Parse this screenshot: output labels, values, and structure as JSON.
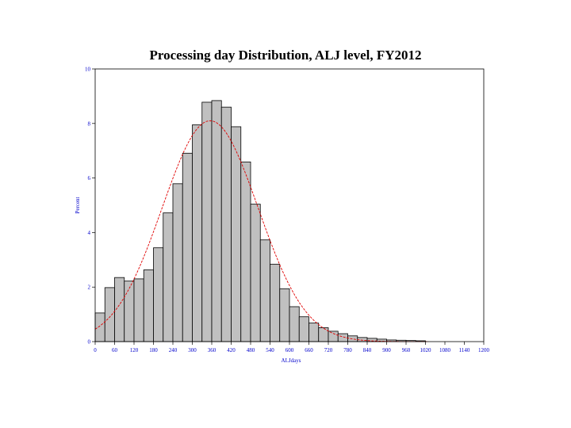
{
  "chart_data": {
    "type": "bar",
    "title": "Processing day Distribution, ALJ level, FY2012",
    "xlabel": "ALJdays",
    "ylabel": "Percent",
    "xlim": [
      0,
      1200
    ],
    "ylim": [
      0,
      10
    ],
    "bin_width": 30,
    "x_ticks": [
      0,
      60,
      120,
      180,
      240,
      300,
      360,
      420,
      480,
      540,
      600,
      660,
      720,
      780,
      840,
      900,
      960,
      1020,
      1080,
      1140,
      1200
    ],
    "y_ticks": [
      0,
      2,
      4,
      6,
      8,
      10
    ],
    "bins": [
      {
        "x": 15,
        "value": 1.05
      },
      {
        "x": 45,
        "value": 1.98
      },
      {
        "x": 75,
        "value": 2.35
      },
      {
        "x": 105,
        "value": 2.22
      },
      {
        "x": 135,
        "value": 2.3
      },
      {
        "x": 165,
        "value": 2.63
      },
      {
        "x": 195,
        "value": 3.44
      },
      {
        "x": 225,
        "value": 4.72
      },
      {
        "x": 255,
        "value": 5.79
      },
      {
        "x": 285,
        "value": 6.91
      },
      {
        "x": 315,
        "value": 7.95
      },
      {
        "x": 345,
        "value": 8.78
      },
      {
        "x": 375,
        "value": 8.84
      },
      {
        "x": 405,
        "value": 8.6
      },
      {
        "x": 435,
        "value": 7.88
      },
      {
        "x": 465,
        "value": 6.59
      },
      {
        "x": 495,
        "value": 5.04
      },
      {
        "x": 525,
        "value": 3.73
      },
      {
        "x": 555,
        "value": 2.84
      },
      {
        "x": 585,
        "value": 1.94
      },
      {
        "x": 615,
        "value": 1.28
      },
      {
        "x": 645,
        "value": 0.91
      },
      {
        "x": 675,
        "value": 0.68
      },
      {
        "x": 705,
        "value": 0.51
      },
      {
        "x": 735,
        "value": 0.38
      },
      {
        "x": 765,
        "value": 0.29
      },
      {
        "x": 795,
        "value": 0.21
      },
      {
        "x": 825,
        "value": 0.15
      },
      {
        "x": 855,
        "value": 0.12
      },
      {
        "x": 885,
        "value": 0.09
      },
      {
        "x": 915,
        "value": 0.06
      },
      {
        "x": 945,
        "value": 0.05
      },
      {
        "x": 975,
        "value": 0.04
      },
      {
        "x": 1005,
        "value": 0.03
      }
    ],
    "normal_curve": {
      "mean": 355,
      "sd": 148,
      "peak": 8.1,
      "color": "#e00000"
    },
    "bar_color": "#c0c0c0",
    "bar_edge_color": "#000000",
    "tick_color": "#0000cc"
  }
}
